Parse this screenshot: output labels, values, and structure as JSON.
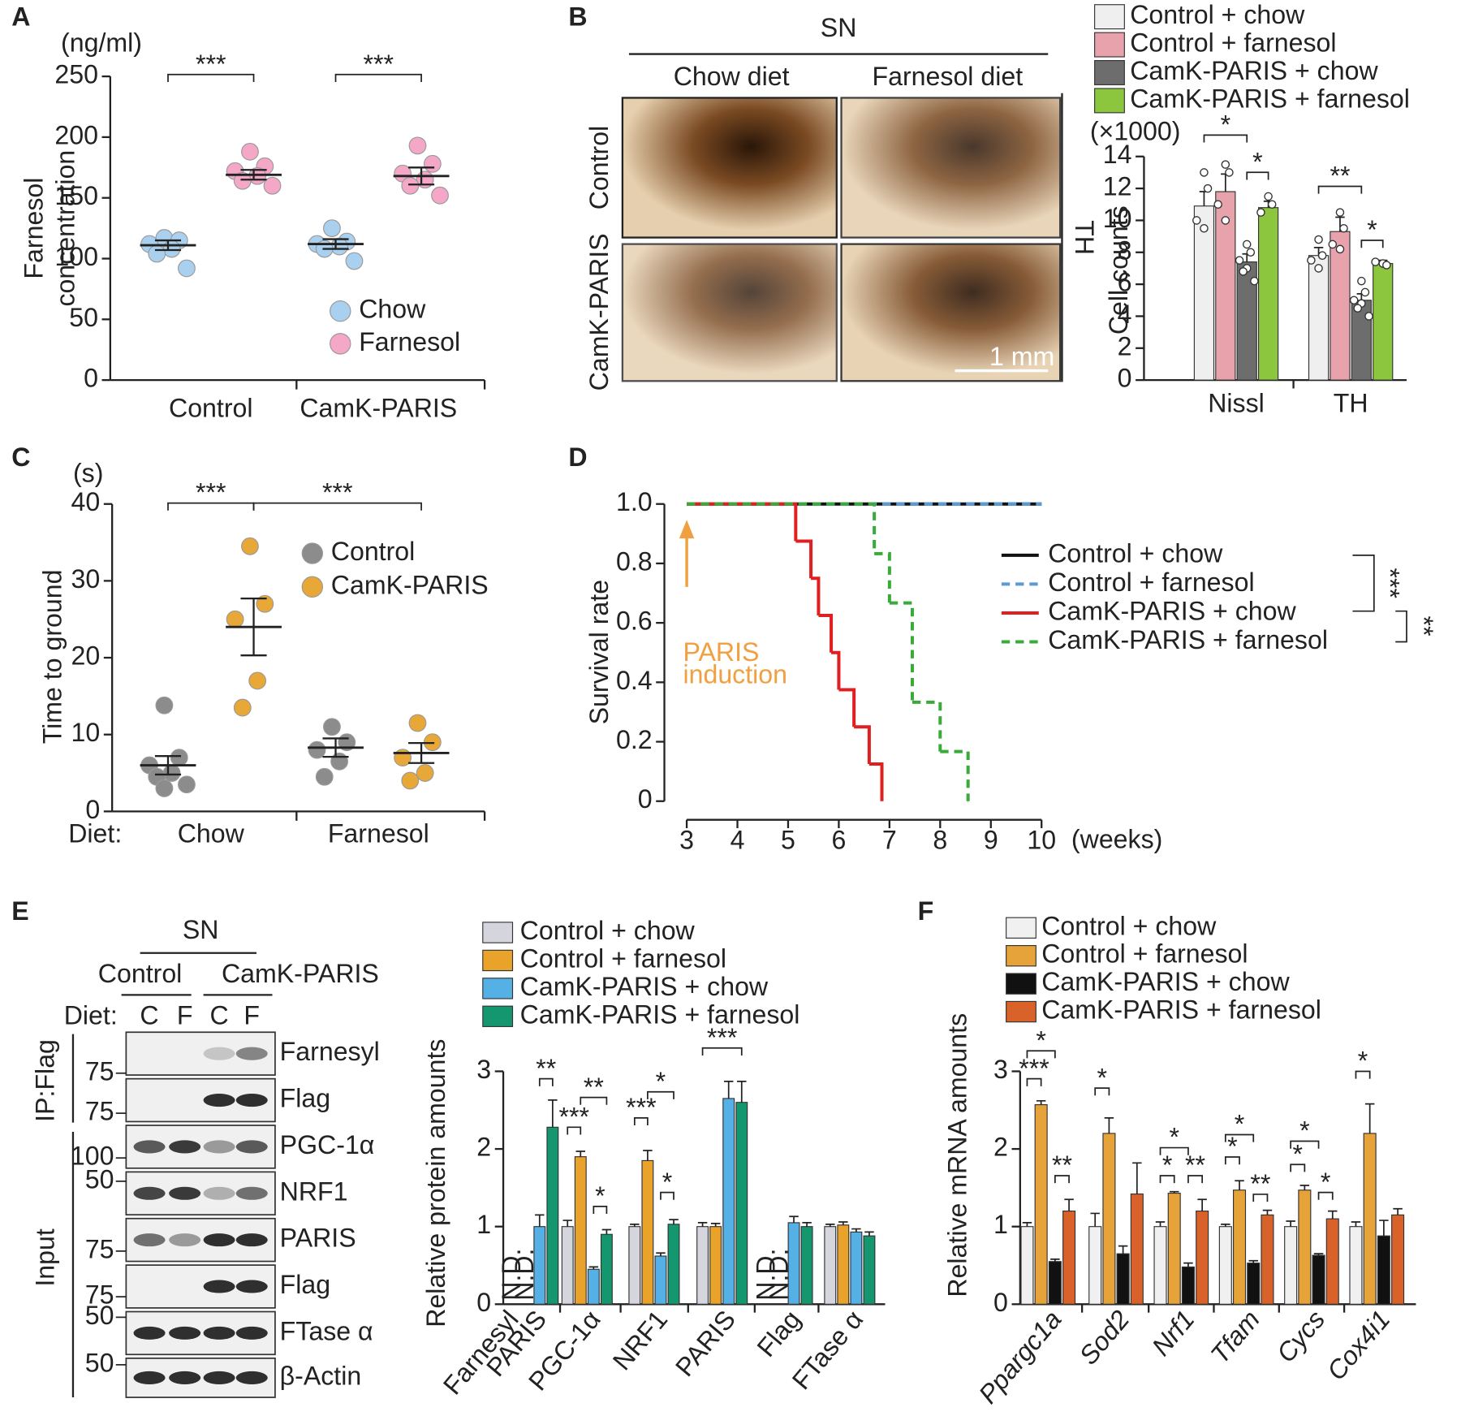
{
  "chart_data": [
    {
      "type": "dot",
      "panel": "A",
      "unit": "(ng/ml)",
      "ylabel": [
        "Farnesol",
        "concentration"
      ],
      "categories": [
        "Control",
        "CamK-PARIS"
      ],
      "series": [
        {
          "name": "Chow",
          "color": "#a9d1ef",
          "values": [
            111,
            112
          ],
          "errors": [
            4,
            4
          ],
          "points": [
            [
              117,
              115,
              112,
              108,
              104,
              92
            ],
            [
              125,
              114,
              112,
              110,
              108,
              98
            ]
          ]
        },
        {
          "name": "Farnesol",
          "color": "#f4a7c7",
          "values": [
            169,
            168
          ],
          "errors": [
            4,
            7
          ],
          "points": [
            [
              188,
              176,
              172,
              168,
              164,
              160
            ],
            [
              193,
              178,
              170,
              165,
              160,
              152
            ]
          ]
        }
      ],
      "ylim": [
        0,
        250
      ],
      "yticks": [
        0,
        50,
        100,
        150,
        200,
        250
      ],
      "annotations": [
        "***",
        "***"
      ]
    },
    {
      "type": "bar",
      "panel": "B",
      "unit": "(×1000)",
      "ylabel": [
        "Cell counts"
      ],
      "categories": [
        "Nissl",
        "TH"
      ],
      "series": [
        {
          "name": "Control + chow",
          "color": "#efefef",
          "values": [
            10.9,
            7.8
          ],
          "errors": [
            0.9,
            0.5
          ],
          "points": [
            [
              13,
              12,
              10,
              9.5
            ],
            [
              8.8,
              7.8,
              7.5,
              7
            ]
          ]
        },
        {
          "name": "Control + farnesol",
          "color": "#e8a2ab",
          "values": [
            11.8,
            9.3
          ],
          "errors": [
            1.1,
            0.9
          ],
          "points": [
            [
              13.5,
              13,
              11,
              10
            ],
            [
              10.5,
              9.5,
              8.5,
              8.2
            ]
          ]
        },
        {
          "name": "CamK-PARIS + chow",
          "color": "#6d6d6d",
          "values": [
            7.4,
            5.0
          ],
          "errors": [
            0.5,
            0.4
          ],
          "points": [
            [
              8.5,
              8,
              7.5,
              7,
              6.8,
              6.2
            ],
            [
              6.2,
              5.5,
              5,
              4.8,
              4.5,
              4
            ]
          ]
        },
        {
          "name": "CamK-PARIS + farnesol",
          "color": "#8cc63e",
          "values": [
            10.8,
            7.3
          ],
          "errors": [
            0.4,
            0.2
          ],
          "points": [
            [
              11.5,
              11,
              10.5
            ],
            [
              7.3,
              7.2,
              7.4
            ]
          ]
        }
      ],
      "ylim": [
        0,
        14
      ],
      "yticks": [
        0,
        2,
        4,
        6,
        8,
        10,
        12,
        14
      ],
      "annotations": [
        "*",
        "*",
        "**",
        "*"
      ]
    },
    {
      "type": "dot",
      "panel": "C",
      "unit": "(s)",
      "ylabel": [
        "Time to ground"
      ],
      "xlabel": "Diet:",
      "categories": [
        "Chow",
        "Farnesol"
      ],
      "series": [
        {
          "name": "Control",
          "color": "#8c8c8c",
          "values": [
            6,
            8.3
          ],
          "errors": [
            1.2,
            1.2
          ],
          "points": [
            [
              13.8,
              7,
              6,
              5,
              4.5,
              3.5,
              3
            ],
            [
              11,
              9,
              8,
              6.5,
              4.5
            ]
          ]
        },
        {
          "name": "CamK-PARIS",
          "color": "#e8a838",
          "values": [
            24,
            7.6
          ],
          "errors": [
            3.7,
            1.3
          ],
          "points": [
            [
              34.5,
              27,
              25,
              17,
              13.5
            ],
            [
              11.5,
              9,
              7,
              5,
              4
            ]
          ]
        }
      ],
      "ylim": [
        0,
        40
      ],
      "yticks": [
        0,
        10,
        20,
        30,
        40
      ],
      "annotations": [
        "***",
        "***"
      ]
    },
    {
      "type": "line",
      "panel": "D",
      "ylabel": [
        "Survival rate"
      ],
      "xunit": "(weeks)",
      "step": true,
      "xlim": [
        3,
        10
      ],
      "xticks": [
        3,
        4,
        5,
        6,
        7,
        8,
        9,
        10
      ],
      "ylim": [
        0,
        1
      ],
      "yticks": [
        0,
        0.2,
        0.4,
        0.6,
        0.8,
        {
          "value": 1,
          "label": "1.0"
        }
      ],
      "series": [
        {
          "name": "Control + chow",
          "color": "#111111",
          "dashed": false,
          "x": [
            3,
            10
          ],
          "values": [
            1,
            1
          ]
        },
        {
          "name": "Control + farnesol",
          "color": "#5b9bd5",
          "dashed": true,
          "x": [
            3,
            10
          ],
          "values": [
            1,
            1
          ]
        },
        {
          "name": "CamK-PARIS + chow",
          "color": "#e02020",
          "dashed": false,
          "x": [
            3,
            5.15,
            5.45,
            5.6,
            5.85,
            6.0,
            6.3,
            6.6,
            6.85
          ],
          "values": [
            1,
            0.875,
            0.75,
            0.625,
            0.5,
            0.375,
            0.25,
            0.125,
            0
          ]
        },
        {
          "name": "CamK-PARIS + farnesol",
          "color": "#3aaa3a",
          "dashed": true,
          "x": [
            3,
            6.7,
            7.0,
            7.45,
            8.0,
            8.55
          ],
          "values": [
            1,
            0.833,
            0.667,
            0.333,
            0.167,
            0
          ]
        }
      ],
      "annotation": [
        "PARIS",
        "induction"
      ],
      "annotation_color": "#f0a040",
      "annotations": [
        "***",
        "**"
      ]
    },
    {
      "type": "bar",
      "panel": "E",
      "ylabel": [
        "Relative protein amounts"
      ],
      "categories": [
        [
          "Farnesyl",
          "PARIS"
        ],
        "PGC-1α",
        "NRF1",
        "PARIS",
        "Flag",
        "FTase α"
      ],
      "series": [
        {
          "name": "Control + chow",
          "color": "#d5d5de",
          "values": [
            null,
            1.0,
            1.0,
            1.0,
            null,
            1.0
          ],
          "value_labels": [
            "N.D.",
            null,
            null,
            null,
            "N.D.",
            null
          ],
          "errors": [
            null,
            0.08,
            0.03,
            0.05,
            null,
            0.03
          ]
        },
        {
          "name": "Control + farnesol",
          "color": "#e9a22a",
          "values": [
            null,
            1.9,
            1.85,
            1.0,
            null,
            1.02
          ],
          "value_labels": [
            "N.D.",
            null,
            null,
            null,
            "N.D.",
            null
          ],
          "errors": [
            null,
            0.07,
            0.13,
            0.04,
            null,
            0.04
          ]
        },
        {
          "name": "CamK-PARIS + chow",
          "color": "#55b0e6",
          "values": [
            1.0,
            0.45,
            0.62,
            2.65,
            1.05,
            0.93
          ],
          "errors": [
            0.15,
            0.03,
            0.04,
            0.22,
            0.08,
            0.04
          ]
        },
        {
          "name": "CamK-PARIS + farnesol",
          "color": "#14976e",
          "values": [
            2.28,
            0.9,
            1.03,
            2.6,
            1.0,
            0.88
          ],
          "errors": [
            0.35,
            0.06,
            0.06,
            0.27,
            0.05,
            0.05
          ]
        }
      ],
      "ylim": [
        0,
        3
      ],
      "yticks": [
        0,
        1,
        2,
        3
      ],
      "annotations": [
        "**",
        "***",
        "**",
        "*",
        "*",
        "***",
        "*",
        "***"
      ]
    },
    {
      "type": "bar",
      "panel": "F",
      "ylabel": [
        "Relative mRNA amounts"
      ],
      "italic_categories": true,
      "categories": [
        "Ppargc1a",
        "Sod2",
        "Nrf1",
        "Tfam",
        "Cycs",
        "Cox4i1"
      ],
      "series": [
        {
          "name": "Control + chow",
          "color": "#f0f0f0",
          "values": [
            1.0,
            1.0,
            1.0,
            1.0,
            1.0,
            1.0
          ],
          "errors": [
            0.05,
            0.17,
            0.06,
            0.03,
            0.07,
            0.06
          ]
        },
        {
          "name": "Control + farnesol",
          "color": "#e5a33a",
          "values": [
            2.57,
            2.2,
            1.43,
            1.47,
            1.47,
            2.2
          ],
          "errors": [
            0.05,
            0.2,
            0.02,
            0.12,
            0.06,
            0.38
          ]
        },
        {
          "name": "CamK-PARIS + chow",
          "color": "#111111",
          "values": [
            0.55,
            0.65,
            0.48,
            0.53,
            0.63,
            0.88
          ],
          "errors": [
            0.03,
            0.1,
            0.05,
            0.03,
            0.02,
            0.2
          ]
        },
        {
          "name": "CamK-PARIS + farnesol",
          "color": "#d8622a",
          "values": [
            1.2,
            1.42,
            1.2,
            1.15,
            1.1,
            1.15
          ],
          "errors": [
            0.15,
            0.4,
            0.15,
            0.06,
            0.1,
            0.08
          ]
        }
      ],
      "ylim": [
        0,
        3
      ],
      "yticks": [
        0,
        1,
        2,
        3
      ],
      "annotations": [
        "*",
        "***",
        "**",
        "*",
        "*",
        "*",
        "**",
        "*",
        "*",
        "**",
        "*",
        "*",
        "*",
        "*"
      ]
    }
  ],
  "micrographs": {
    "title": "SN",
    "columns": [
      "Chow diet",
      "Farnesol diet"
    ],
    "rows": [
      "Control",
      "CamK-PARIS"
    ],
    "stain": "TH",
    "scale_bar": "1 mm"
  },
  "blot": {
    "title": "SN",
    "groups": [
      "Control",
      "CamK-PARIS"
    ],
    "diet_label": "Diet:",
    "lanes": [
      "C",
      "F",
      "C",
      "F"
    ],
    "sections": [
      "IP:Flag",
      "Input"
    ],
    "rows": [
      {
        "label": "Farnesyl",
        "marker": "75"
      },
      {
        "label": "Flag",
        "marker": "75"
      },
      {
        "label": "PGC-1α",
        "marker": "100"
      },
      {
        "label": "NRF1",
        "marker": "50"
      },
      {
        "label": "PARIS",
        "marker": "75"
      },
      {
        "label": "Flag",
        "marker": "75"
      },
      {
        "label": "FTase α",
        "marker": "50"
      },
      {
        "label": "β-Actin",
        "marker": "50"
      }
    ]
  }
}
